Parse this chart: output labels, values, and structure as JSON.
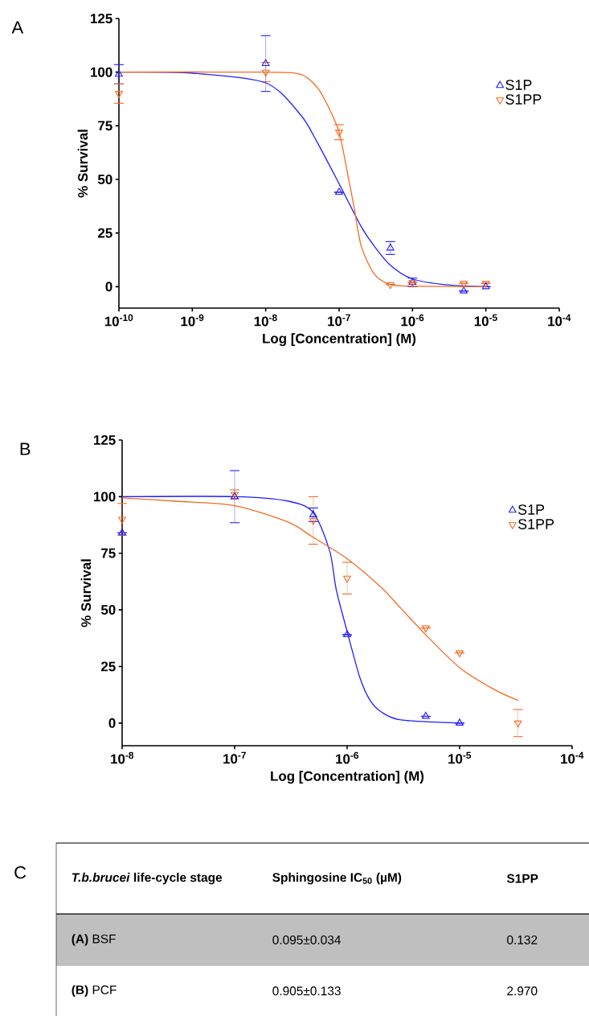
{
  "chart_data": [
    {
      "type": "scatter",
      "annotations": [
        "A"
      ],
      "xlabel": "Log [Concentration] (M)",
      "ylabel": "% Survival",
      "log": "x",
      "legend": "top right",
      "xlim": [
        1e-10,
        0.0001
      ],
      "ylim": [
        -10,
        125
      ],
      "xticks": [
        {
          "value": 1e-10,
          "label": "10$^{-10}$"
        },
        {
          "value": 1e-09,
          "label": "10$^{-9}$"
        },
        {
          "value": 1e-08,
          "label": "10$^{-8}$"
        },
        {
          "value": 1e-07,
          "label": "10$^{-7}$"
        },
        {
          "value": 1e-06,
          "label": "10$^{-6}$"
        },
        {
          "value": 1e-05,
          "label": "10$^{-5}$"
        },
        {
          "value": 0.0001,
          "label": "10$^{-4}$"
        }
      ],
      "yticks": [
        0,
        25,
        50,
        75,
        100,
        125
      ],
      "series": [
        {
          "name": "S1P",
          "type": "scatter",
          "marker": "triangle",
          "color": "#1f1fff",
          "x": [
            1e-10,
            1e-08,
            1e-07,
            5e-07,
            1e-06,
            5e-06,
            1e-05
          ],
          "values": [
            99,
            104,
            44,
            18,
            2,
            -2,
            0
          ],
          "errors": [
            4.5,
            13,
            null,
            3,
            2,
            null,
            null
          ]
        },
        {
          "name": "S1PP",
          "type": "scatter",
          "marker": "triangle_down",
          "color": "#f26b21",
          "x": [
            1e-10,
            1e-08,
            1e-07,
            5e-07,
            1e-06,
            5e-06,
            1e-05
          ],
          "values": [
            90,
            100,
            72,
            1,
            2,
            1.5,
            1.5
          ],
          "errors": [
            4.5,
            4.5,
            3.5,
            null,
            null,
            null,
            null
          ]
        },
        {
          "type": "line",
          "marker": "none",
          "color": "#1f1fff",
          "x": [
            1e-10,
            1e-09,
            1e-08,
            3e-08,
            5e-08,
            1e-07,
            2e-07,
            3e-07,
            5e-07,
            1e-06,
            3e-06,
            1e-05
          ],
          "values": [
            100,
            99.5,
            95,
            80,
            67.5,
            48,
            28,
            19,
            10,
            3.6,
            0.8,
            0
          ]
        },
        {
          "type": "line",
          "marker": "none",
          "color": "#f26b21",
          "x": [
            1e-10,
            1e-08,
            3e-08,
            5e-08,
            7e-08,
            1e-07,
            1.3e-07,
            1.6e-07,
            2e-07,
            3e-07,
            5e-07,
            1e-06,
            1e-05
          ],
          "values": [
            100,
            100,
            99,
            93,
            84.5,
            72,
            53,
            37,
            19,
            6,
            1,
            0.2,
            0
          ]
        }
      ]
    },
    {
      "type": "scatter",
      "annotations": [
        "B"
      ],
      "xlabel": "Log [Concentration] (M)",
      "ylabel": "% Survival",
      "log": "x",
      "legend": "top right",
      "xlim": [
        1e-08,
        0.0001
      ],
      "ylim": [
        -10,
        125
      ],
      "xticks": [
        {
          "value": 1e-08,
          "label": "10$^{-8}$"
        },
        {
          "value": 1e-07,
          "label": "10$^{-7}$"
        },
        {
          "value": 1e-06,
          "label": "10$^{-6}$"
        },
        {
          "value": 1e-05,
          "label": "10$^{-5}$"
        },
        {
          "value": 0.0001,
          "label": "10$^{-4}$"
        }
      ],
      "yticks": [
        0,
        25,
        50,
        75,
        100,
        125
      ],
      "series": [
        {
          "name": "S1P",
          "type": "scatter",
          "marker": "triangle",
          "color": "#1f1fff",
          "x": [
            1e-08,
            1e-07,
            5e-07,
            1e-06,
            5e-06,
            1e-05
          ],
          "values": [
            84,
            100,
            92,
            39,
            3,
            0
          ],
          "errors": [
            null,
            11.5,
            3,
            null,
            null,
            null
          ]
        },
        {
          "name": "S1PP",
          "type": "scatter",
          "marker": "triangle_down",
          "color": "#f26b21",
          "x": [
            1e-08,
            1e-07,
            5e-07,
            1e-06,
            5e-06,
            1e-05,
            3.3e-05
          ],
          "values": [
            90,
            101,
            89.5,
            64,
            42,
            31,
            0
          ],
          "errors": [
            7,
            2,
            10.5,
            7,
            null,
            null,
            6
          ]
        },
        {
          "type": "line",
          "marker": "none",
          "color": "#1f1fff",
          "x": [
            1e-08,
            1e-07,
            3e-07,
            5e-07,
            7e-07,
            8e-07,
            1e-06,
            1.3e-06,
            1.6e-06,
            2e-06,
            3e-06,
            1e-05
          ],
          "values": [
            100,
            100,
            98,
            93,
            76,
            59,
            40.5,
            20,
            10,
            5,
            1.4,
            0
          ]
        },
        {
          "type": "line",
          "marker": "none",
          "color": "#f26b21",
          "x": [
            1e-08,
            3e-08,
            1e-07,
            3e-07,
            5e-07,
            1e-06,
            2e-06,
            3e-06,
            5e-06,
            1e-05,
            2e-05,
            3.3e-05
          ],
          "values": [
            99.5,
            98,
            96,
            88.7,
            82,
            72.6,
            60,
            50.7,
            39,
            24.5,
            15,
            10
          ]
        }
      ]
    },
    {
      "type": "other",
      "annotations": [
        "C",
        "*T.b.brucei* life-cycle stage",
        "Sphingosine IC$_{50}$ (µM)",
        "S1PP",
        "**(A)** BSF",
        "0.095±0.034",
        "0.132",
        "**(B)** PCF",
        "0.905±0.133",
        "2.970"
      ]
    }
  ]
}
